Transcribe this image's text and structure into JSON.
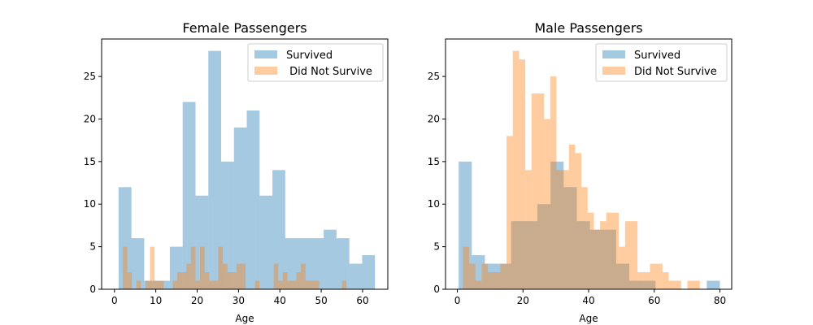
{
  "chart_data": [
    {
      "type": "bar",
      "title": "Female Passengers",
      "xlabel": "Age",
      "ylabel": "",
      "xlim": [
        -3.1,
        66.1
      ],
      "ylim": [
        0,
        29.4
      ],
      "xticks": [
        0,
        10,
        20,
        30,
        40,
        50,
        60
      ],
      "yticks": [
        0,
        5,
        10,
        15,
        20,
        25
      ],
      "legend": "top-right",
      "series": [
        {
          "name": "Survived",
          "color": "#1f77b4",
          "opacity": 0.4,
          "bins": [
            {
              "x0": 1.0,
              "x1": 4.1,
              "y": 12
            },
            {
              "x0": 4.1,
              "x1": 7.2,
              "y": 6
            },
            {
              "x0": 7.2,
              "x1": 10.3,
              "y": 1
            },
            {
              "x0": 10.3,
              "x1": 13.4,
              "y": 1
            },
            {
              "x0": 13.4,
              "x1": 16.5,
              "y": 5
            },
            {
              "x0": 16.5,
              "x1": 19.6,
              "y": 22
            },
            {
              "x0": 19.6,
              "x1": 22.7,
              "y": 11
            },
            {
              "x0": 22.7,
              "x1": 25.8,
              "y": 28
            },
            {
              "x0": 25.8,
              "x1": 28.9,
              "y": 15
            },
            {
              "x0": 28.9,
              "x1": 32.0,
              "y": 19
            },
            {
              "x0": 32.0,
              "x1": 35.1,
              "y": 21
            },
            {
              "x0": 35.1,
              "x1": 38.2,
              "y": 11
            },
            {
              "x0": 38.2,
              "x1": 41.3,
              "y": 14
            },
            {
              "x0": 41.3,
              "x1": 44.4,
              "y": 6
            },
            {
              "x0": 44.4,
              "x1": 47.5,
              "y": 6
            },
            {
              "x0": 47.5,
              "x1": 50.6,
              "y": 6
            },
            {
              "x0": 50.6,
              "x1": 53.7,
              "y": 7
            },
            {
              "x0": 53.7,
              "x1": 56.8,
              "y": 6
            },
            {
              "x0": 56.8,
              "x1": 59.9,
              "y": 3
            },
            {
              "x0": 59.9,
              "x1": 63.0,
              "y": 4
            }
          ]
        },
        {
          "name": " Did Not Survive",
          "color": "#ff7f0e",
          "opacity": 0.4,
          "bins": [
            {
              "x0": 2.0,
              "x1": 3.1,
              "y": 5
            },
            {
              "x0": 3.1,
              "x1": 4.2,
              "y": 2
            },
            {
              "x0": 5.3,
              "x1": 6.4,
              "y": 1
            },
            {
              "x0": 7.5,
              "x1": 8.6,
              "y": 1
            },
            {
              "x0": 8.6,
              "x1": 9.7,
              "y": 5
            },
            {
              "x0": 9.7,
              "x1": 10.8,
              "y": 1
            },
            {
              "x0": 10.8,
              "x1": 11.9,
              "y": 1
            },
            {
              "x0": 14.1,
              "x1": 15.2,
              "y": 1
            },
            {
              "x0": 15.2,
              "x1": 16.3,
              "y": 2
            },
            {
              "x0": 16.3,
              "x1": 17.4,
              "y": 2
            },
            {
              "x0": 17.4,
              "x1": 18.5,
              "y": 3
            },
            {
              "x0": 18.5,
              "x1": 19.6,
              "y": 5
            },
            {
              "x0": 19.6,
              "x1": 20.7,
              "y": 1
            },
            {
              "x0": 20.7,
              "x1": 21.8,
              "y": 5
            },
            {
              "x0": 21.8,
              "x1": 22.9,
              "y": 2
            },
            {
              "x0": 22.9,
              "x1": 24.0,
              "y": 1
            },
            {
              "x0": 24.0,
              "x1": 25.1,
              "y": 1
            },
            {
              "x0": 25.1,
              "x1": 26.2,
              "y": 5
            },
            {
              "x0": 26.2,
              "x1": 27.3,
              "y": 3
            },
            {
              "x0": 27.3,
              "x1": 28.4,
              "y": 2
            },
            {
              "x0": 28.4,
              "x1": 29.5,
              "y": 2
            },
            {
              "x0": 29.5,
              "x1": 30.6,
              "y": 3
            },
            {
              "x0": 30.6,
              "x1": 31.7,
              "y": 3
            },
            {
              "x0": 34.0,
              "x1": 35.1,
              "y": 1
            },
            {
              "x0": 38.5,
              "x1": 39.6,
              "y": 3
            },
            {
              "x0": 39.6,
              "x1": 40.7,
              "y": 1
            },
            {
              "x0": 40.7,
              "x1": 41.8,
              "y": 2
            },
            {
              "x0": 41.8,
              "x1": 42.9,
              "y": 1
            },
            {
              "x0": 42.9,
              "x1": 44.0,
              "y": 1
            },
            {
              "x0": 44.0,
              "x1": 45.1,
              "y": 2
            },
            {
              "x0": 45.1,
              "x1": 46.2,
              "y": 3
            },
            {
              "x0": 46.2,
              "x1": 47.3,
              "y": 1
            },
            {
              "x0": 47.3,
              "x1": 48.4,
              "y": 1
            },
            {
              "x0": 48.4,
              "x1": 49.5,
              "y": 1
            },
            {
              "x0": 55.0,
              "x1": 56.1,
              "y": 1
            }
          ]
        }
      ]
    },
    {
      "type": "bar",
      "title": "Male Passengers",
      "xlabel": "Age",
      "ylabel": "",
      "xlim": [
        -3.6,
        83.6
      ],
      "ylim": [
        0,
        29.4
      ],
      "xticks": [
        0,
        20,
        40,
        60,
        80
      ],
      "yticks": [
        0,
        5,
        10,
        15,
        20,
        25
      ],
      "legend": "top-right",
      "series": [
        {
          "name": "Survived",
          "color": "#1f77b4",
          "opacity": 0.4,
          "bins": [
            {
              "x0": 0.4,
              "x1": 4.4,
              "y": 15
            },
            {
              "x0": 4.4,
              "x1": 8.4,
              "y": 4
            },
            {
              "x0": 8.4,
              "x1": 12.4,
              "y": 3
            },
            {
              "x0": 12.4,
              "x1": 16.4,
              "y": 3
            },
            {
              "x0": 16.4,
              "x1": 20.4,
              "y": 8
            },
            {
              "x0": 20.4,
              "x1": 24.4,
              "y": 8
            },
            {
              "x0": 24.4,
              "x1": 28.4,
              "y": 10
            },
            {
              "x0": 28.4,
              "x1": 32.4,
              "y": 15
            },
            {
              "x0": 32.4,
              "x1": 36.4,
              "y": 12
            },
            {
              "x0": 36.4,
              "x1": 40.4,
              "y": 8
            },
            {
              "x0": 40.4,
              "x1": 44.4,
              "y": 7
            },
            {
              "x0": 44.4,
              "x1": 48.4,
              "y": 7
            },
            {
              "x0": 48.4,
              "x1": 52.4,
              "y": 3
            },
            {
              "x0": 52.4,
              "x1": 56.4,
              "y": 1
            },
            {
              "x0": 56.4,
              "x1": 60.4,
              "y": 1
            },
            {
              "x0": 76.0,
              "x1": 80.0,
              "y": 1
            }
          ]
        },
        {
          "name": "Did Not Survive",
          "color": "#ff7f0e",
          "opacity": 0.4,
          "bins": [
            {
              "x0": 1.7,
              "x1": 3.6,
              "y": 5
            },
            {
              "x0": 3.6,
              "x1": 5.5,
              "y": 3
            },
            {
              "x0": 5.5,
              "x1": 7.4,
              "y": 1
            },
            {
              "x0": 7.4,
              "x1": 9.3,
              "y": 3
            },
            {
              "x0": 9.3,
              "x1": 11.2,
              "y": 2
            },
            {
              "x0": 11.2,
              "x1": 13.1,
              "y": 2
            },
            {
              "x0": 13.1,
              "x1": 15.0,
              "y": 3
            },
            {
              "x0": 15.0,
              "x1": 16.9,
              "y": 18
            },
            {
              "x0": 16.9,
              "x1": 18.8,
              "y": 28
            },
            {
              "x0": 18.8,
              "x1": 20.7,
              "y": 27
            },
            {
              "x0": 20.7,
              "x1": 22.6,
              "y": 14
            },
            {
              "x0": 22.6,
              "x1": 24.5,
              "y": 23
            },
            {
              "x0": 24.5,
              "x1": 26.4,
              "y": 23
            },
            {
              "x0": 26.4,
              "x1": 28.3,
              "y": 20
            },
            {
              "x0": 28.3,
              "x1": 30.2,
              "y": 25
            },
            {
              "x0": 30.2,
              "x1": 32.1,
              "y": 14
            },
            {
              "x0": 32.1,
              "x1": 34.0,
              "y": 14
            },
            {
              "x0": 34.0,
              "x1": 35.9,
              "y": 17
            },
            {
              "x0": 35.9,
              "x1": 37.8,
              "y": 16
            },
            {
              "x0": 37.8,
              "x1": 39.7,
              "y": 12
            },
            {
              "x0": 39.7,
              "x1": 41.6,
              "y": 9
            },
            {
              "x0": 41.6,
              "x1": 43.5,
              "y": 7
            },
            {
              "x0": 43.5,
              "x1": 45.4,
              "y": 8
            },
            {
              "x0": 45.4,
              "x1": 47.3,
              "y": 9
            },
            {
              "x0": 47.3,
              "x1": 49.2,
              "y": 9
            },
            {
              "x0": 49.2,
              "x1": 51.1,
              "y": 5
            },
            {
              "x0": 51.1,
              "x1": 53.0,
              "y": 8
            },
            {
              "x0": 53.0,
              "x1": 54.9,
              "y": 8
            },
            {
              "x0": 54.9,
              "x1": 56.8,
              "y": 2
            },
            {
              "x0": 56.8,
              "x1": 58.7,
              "y": 2
            },
            {
              "x0": 58.7,
              "x1": 60.6,
              "y": 3
            },
            {
              "x0": 60.6,
              "x1": 62.5,
              "y": 3
            },
            {
              "x0": 62.5,
              "x1": 64.4,
              "y": 2
            },
            {
              "x0": 64.4,
              "x1": 66.3,
              "y": 1
            },
            {
              "x0": 66.3,
              "x1": 68.2,
              "y": 1
            },
            {
              "x0": 70.1,
              "x1": 72.0,
              "y": 1
            },
            {
              "x0": 72.0,
              "x1": 73.9,
              "y": 1
            }
          ]
        }
      ]
    }
  ]
}
